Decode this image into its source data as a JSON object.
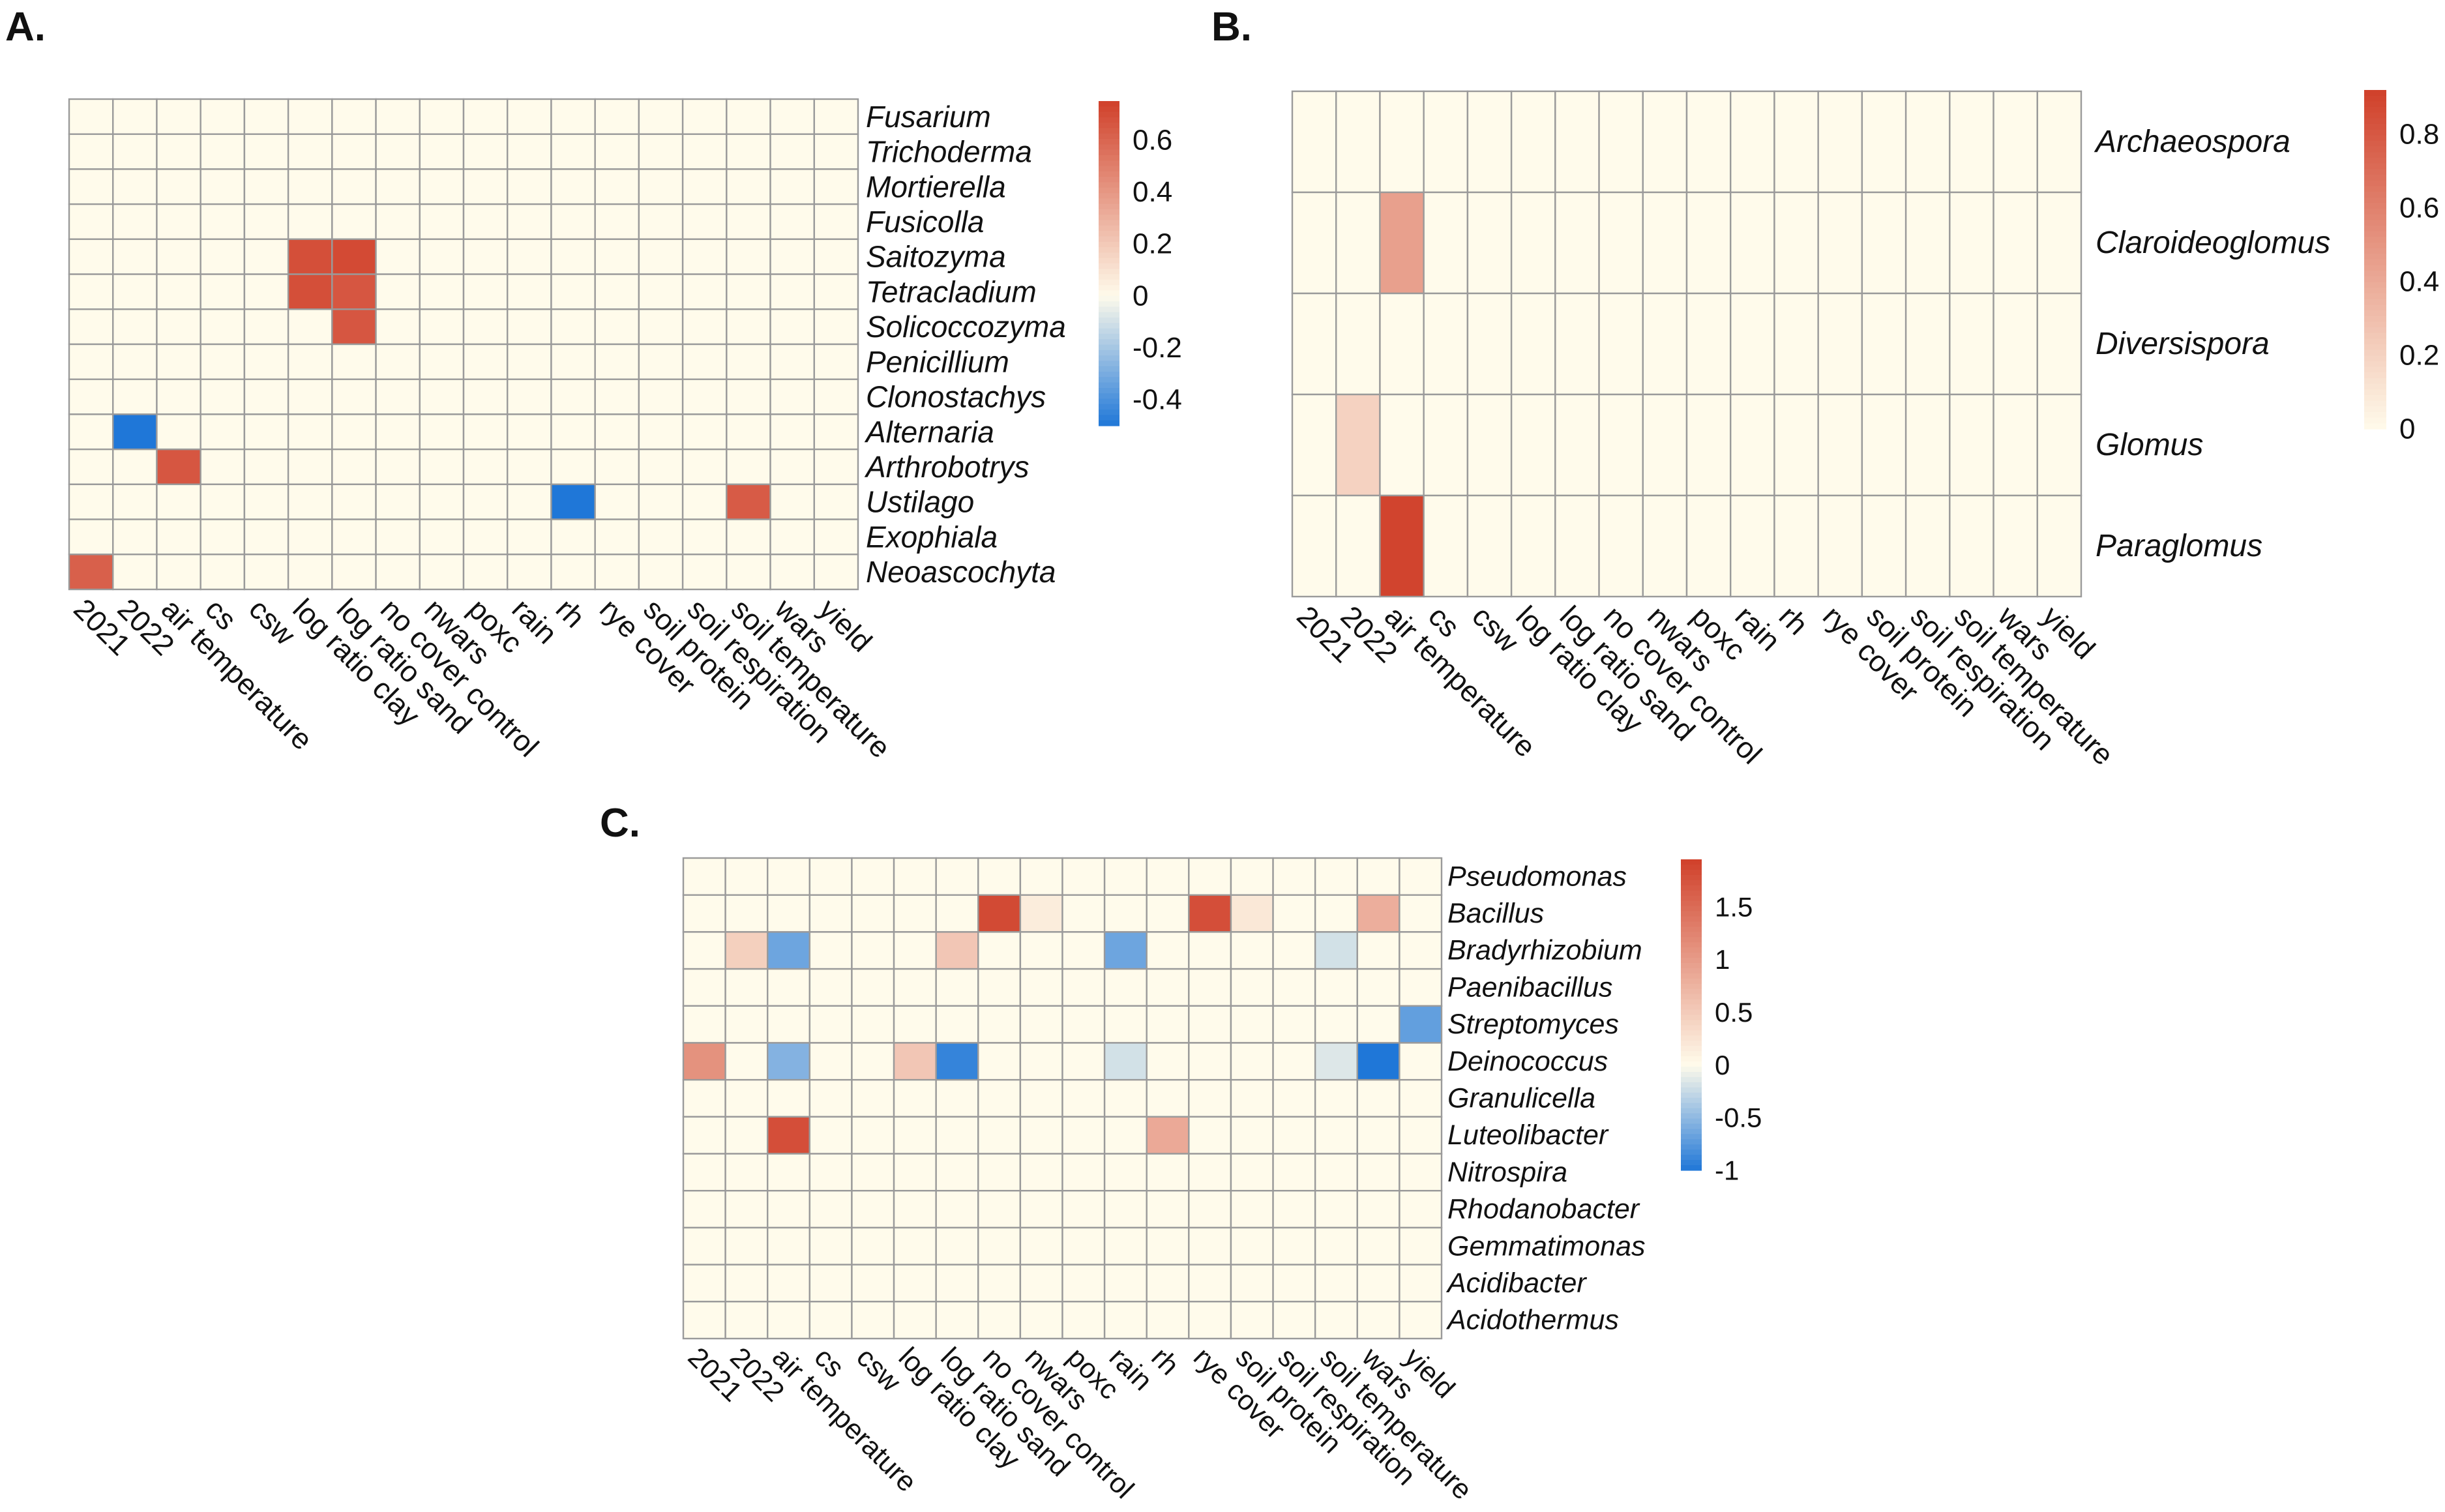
{
  "chart_data": [
    {
      "type": "heatmap",
      "panel_label": "A.",
      "columns": [
        "2021",
        "2022",
        "air temperature",
        "cs",
        "csw",
        "log ratio clay",
        "log ratio sand",
        "no cover control",
        "nwars",
        "poxc",
        "rain",
        "rh",
        "rye cover",
        "soil protein",
        "soil respiration",
        "soil temperature",
        "wars",
        "yield"
      ],
      "rows": [
        "Fusarium",
        "Trichoderma",
        "Mortierella",
        "Fusicolla",
        "Saitozyma",
        "Tetracladium",
        "Solicoccozyma",
        "Penicillium",
        "Clonostachys",
        "Alternaria",
        "Arthrobotrys",
        "Ustilago",
        "Exophiala",
        "Neoascochyta"
      ],
      "values": [
        [
          0,
          0,
          0,
          0,
          0,
          0,
          0,
          0,
          0,
          0,
          0,
          0,
          0,
          0,
          0,
          0,
          0,
          0
        ],
        [
          0,
          0,
          0,
          0,
          0,
          0,
          0,
          0,
          0,
          0,
          0,
          0,
          0,
          0,
          0,
          0,
          0,
          0
        ],
        [
          0,
          0,
          0,
          0,
          0,
          0,
          0,
          0,
          0,
          0,
          0,
          0,
          0,
          0,
          0,
          0,
          0,
          0
        ],
        [
          0,
          0,
          0,
          0,
          0,
          0,
          0,
          0,
          0,
          0,
          0,
          0,
          0,
          0,
          0,
          0,
          0,
          0
        ],
        [
          0,
          0,
          0,
          0,
          0,
          0.69,
          0.71,
          0,
          0,
          0,
          0,
          0,
          0,
          0,
          0,
          0,
          0,
          0
        ],
        [
          0,
          0,
          0,
          0,
          0,
          0.69,
          0.66,
          0,
          0,
          0,
          0,
          0,
          0,
          0,
          0,
          0,
          0,
          0
        ],
        [
          0,
          0,
          0,
          0,
          0,
          0,
          0.66,
          0,
          0,
          0,
          0,
          0,
          0,
          0,
          0,
          0,
          0,
          0
        ],
        [
          0,
          0,
          0,
          0,
          0,
          0,
          0,
          0,
          0,
          0,
          0,
          0,
          0,
          0,
          0,
          0,
          0,
          0
        ],
        [
          0,
          0,
          0,
          0,
          0,
          0,
          0,
          0,
          0,
          0,
          0,
          0,
          0,
          0,
          0,
          0,
          0,
          0
        ],
        [
          0,
          -0.5,
          0,
          0,
          0,
          0,
          0,
          0,
          0,
          0,
          0,
          0,
          0,
          0,
          0,
          0,
          0,
          0
        ],
        [
          0,
          0,
          0.66,
          0,
          0,
          0,
          0,
          0,
          0,
          0,
          0,
          0,
          0,
          0,
          0,
          0,
          0,
          0
        ],
        [
          0,
          0,
          0,
          0,
          0,
          0,
          0,
          0,
          0,
          0,
          0,
          -0.5,
          0,
          0,
          0,
          0.64,
          0,
          0
        ],
        [
          0,
          0,
          0,
          0,
          0,
          0,
          0,
          0,
          0,
          0,
          0,
          0,
          0,
          0,
          0,
          0,
          0,
          0
        ],
        [
          0.62,
          0,
          0,
          0,
          0,
          0,
          0,
          0,
          0,
          0,
          0,
          0,
          0,
          0,
          0,
          0,
          0,
          0
        ]
      ],
      "scale": {
        "min": -0.5,
        "max": 0.75,
        "ticks": [
          0.6,
          0.4,
          0.2,
          0,
          -0.2,
          -0.4
        ],
        "tick_labels": [
          "0.6",
          "0.4",
          "0.2",
          "0",
          "-0.2",
          "-0.4"
        ]
      }
    },
    {
      "type": "heatmap",
      "panel_label": "B.",
      "columns": [
        "2021",
        "2022",
        "air temperature",
        "cs",
        "csw",
        "log ratio clay",
        "log ratio sand",
        "no cover control",
        "nwars",
        "poxc",
        "rain",
        "rh",
        "rye cover",
        "soil protein",
        "soil respiration",
        "soil temperature",
        "wars",
        "yield"
      ],
      "rows": [
        "Archaeospora",
        "Claroideoglomus",
        "Diversispora",
        "Glomus",
        "Paraglomus"
      ],
      "values": [
        [
          0,
          0,
          0,
          0,
          0,
          0,
          0,
          0,
          0,
          0,
          0,
          0,
          0,
          0,
          0,
          0,
          0,
          0
        ],
        [
          0,
          0,
          0.45,
          0,
          0,
          0,
          0,
          0,
          0,
          0,
          0,
          0,
          0,
          0,
          0,
          0,
          0,
          0
        ],
        [
          0,
          0,
          0,
          0,
          0,
          0,
          0,
          0,
          0,
          0,
          0,
          0,
          0,
          0,
          0,
          0,
          0,
          0
        ],
        [
          0,
          0.2,
          0,
          0,
          0,
          0,
          0,
          0,
          0,
          0,
          0,
          0,
          0,
          0,
          0,
          0,
          0,
          0
        ],
        [
          0,
          0,
          0.9,
          0,
          0,
          0,
          0,
          0,
          0,
          0,
          0,
          0,
          0,
          0,
          0,
          0,
          0,
          0
        ]
      ],
      "scale": {
        "min": 0,
        "max": 0.92,
        "ticks": [
          0.8,
          0.6,
          0.4,
          0.2,
          0
        ],
        "tick_labels": [
          "0.8",
          "0.6",
          "0.4",
          "0.2",
          "0"
        ]
      }
    },
    {
      "type": "heatmap",
      "panel_label": "C.",
      "columns": [
        "2021",
        "2022",
        "air temperature",
        "cs",
        "csw",
        "log ratio clay",
        "log ratio sand",
        "no cover control",
        "nwars",
        "poxc",
        "rain",
        "rh",
        "rye cover",
        "soil protein",
        "soil respiration",
        "soil temperature",
        "wars",
        "yield"
      ],
      "rows": [
        "Pseudomonas",
        "Bacillus",
        "Bradyrhizobium",
        "Paenibacillus",
        "Streptomyces",
        "Deinococcus",
        "Granulicella",
        "Luteolibacter",
        "Nitrospira",
        "Rhodanobacter",
        "Gemmatimonas",
        "Acidibacter",
        "Acidothermus"
      ],
      "values": [
        [
          0,
          0,
          0,
          0,
          0,
          0,
          0,
          0,
          0,
          0,
          0,
          0,
          0,
          0,
          0,
          0,
          0,
          0
        ],
        [
          0,
          0,
          0,
          0,
          0,
          0,
          0,
          1.85,
          0.15,
          0,
          0,
          0,
          1.8,
          0.2,
          0,
          0,
          0.8,
          0
        ],
        [
          0,
          0.45,
          -0.65,
          0,
          0,
          0,
          0.55,
          0,
          0,
          0,
          -0.65,
          0,
          0,
          0,
          0,
          -0.2,
          0,
          0
        ],
        [
          0,
          0,
          0,
          0,
          0,
          0,
          0,
          0,
          0,
          0,
          0,
          0,
          0,
          0,
          0,
          0,
          0,
          0
        ],
        [
          0,
          0,
          0,
          0,
          0,
          0,
          0,
          0,
          0,
          0,
          0,
          0,
          0,
          0,
          0,
          0,
          0,
          -0.7
        ],
        [
          1.1,
          0,
          -0.55,
          0,
          0,
          0.55,
          -0.9,
          0,
          0,
          0,
          -0.2,
          0,
          0,
          0,
          0,
          -0.15,
          -1.0,
          0
        ],
        [
          0,
          0,
          0,
          0,
          0,
          0,
          0,
          0,
          0,
          0,
          0,
          0,
          0,
          0,
          0,
          0,
          0,
          0
        ],
        [
          0,
          0,
          1.8,
          0,
          0,
          0,
          0,
          0,
          0,
          0,
          0,
          0.85,
          0,
          0,
          0,
          0,
          0,
          0
        ],
        [
          0,
          0,
          0,
          0,
          0,
          0,
          0,
          0,
          0,
          0,
          0,
          0,
          0,
          0,
          0,
          0,
          0,
          0
        ],
        [
          0,
          0,
          0,
          0,
          0,
          0,
          0,
          0,
          0,
          0,
          0,
          0,
          0,
          0,
          0,
          0,
          0,
          0
        ],
        [
          0,
          0,
          0,
          0,
          0,
          0,
          0,
          0,
          0,
          0,
          0,
          0,
          0,
          0,
          0,
          0,
          0,
          0
        ],
        [
          0,
          0,
          0,
          0,
          0,
          0,
          0,
          0,
          0,
          0,
          0,
          0,
          0,
          0,
          0,
          0,
          0,
          0
        ],
        [
          0,
          0,
          0,
          0,
          0,
          0,
          0,
          0,
          0,
          0,
          0,
          0,
          0,
          0,
          0,
          0,
          0,
          0
        ]
      ],
      "scale": {
        "min": -1.0,
        "max": 1.95,
        "ticks": [
          1.5,
          1,
          0.5,
          0,
          -0.5,
          -1
        ],
        "tick_labels": [
          "1.5",
          "1",
          "0.5",
          "0",
          "-0.5",
          "-1"
        ]
      }
    }
  ],
  "colors": {
    "neg": "#1f77d8",
    "mid": "#fffbeb",
    "pos": "#d0402a"
  }
}
